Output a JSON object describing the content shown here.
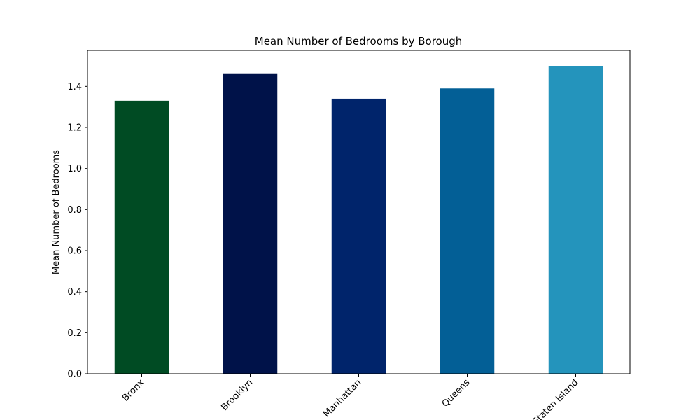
{
  "chart_data": {
    "type": "bar",
    "title": "Mean Number of Bedrooms by Borough",
    "xlabel": "",
    "ylabel": "Mean Number of Bedrooms",
    "categories": [
      "Bronx",
      "Brooklyn",
      "Manhattan",
      "Queens",
      "Staten Island"
    ],
    "values": [
      1.33,
      1.46,
      1.34,
      1.39,
      1.5
    ],
    "colors": [
      "#004b23",
      "#001249",
      "#00246b",
      "#035f96",
      "#2494bc"
    ],
    "ylim": [
      0,
      1.575
    ],
    "yticks": [
      "0.0",
      "0.2",
      "0.4",
      "0.6",
      "0.8",
      "1.0",
      "1.2",
      "1.4"
    ],
    "grid": false,
    "legend": "none"
  }
}
